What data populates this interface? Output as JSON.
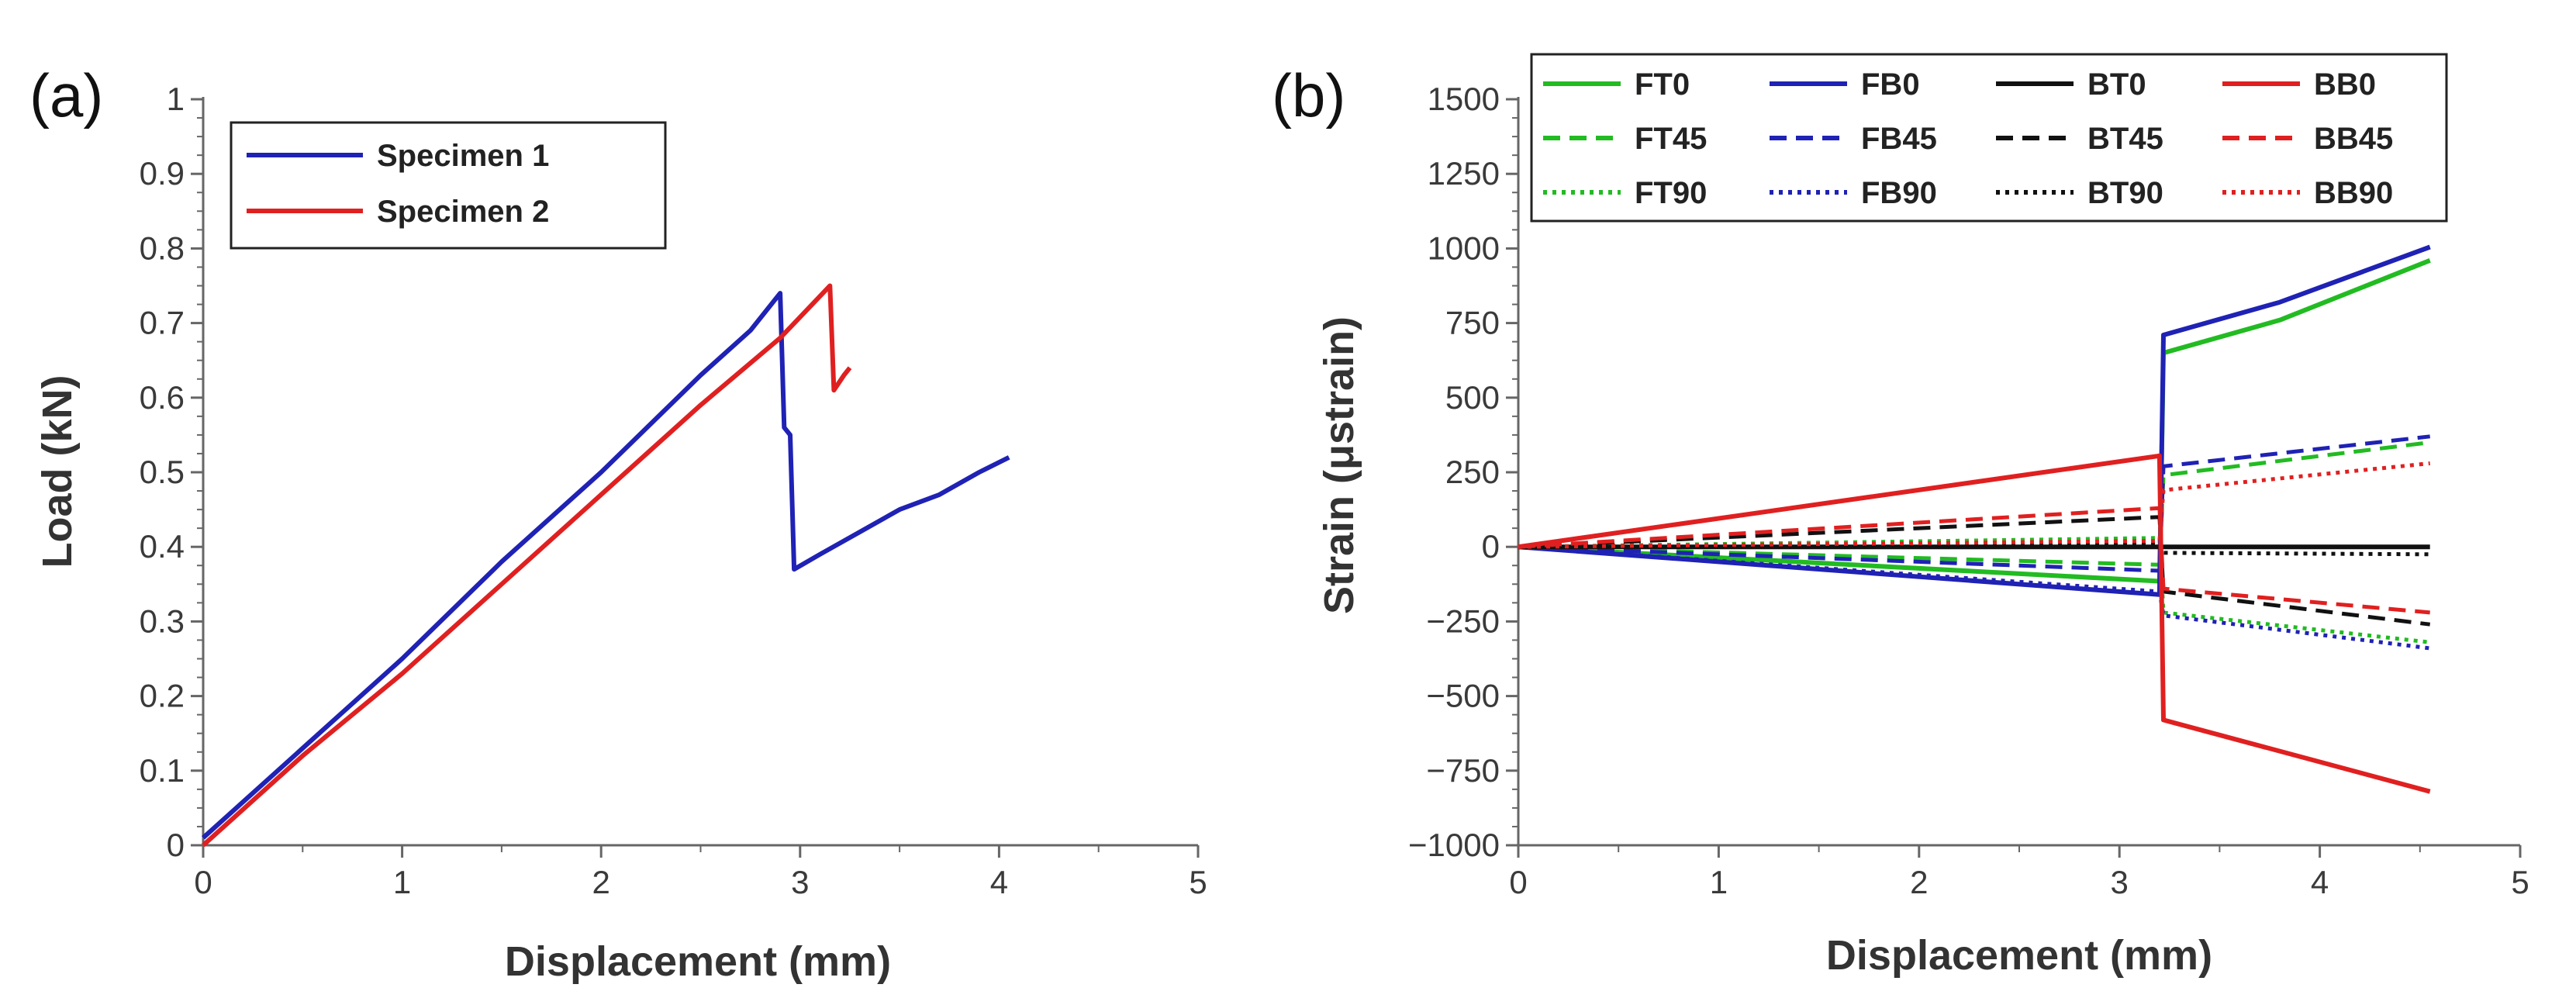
{
  "chart_data": [
    {
      "type": "line",
      "panel_label": "(a)",
      "xlabel": "Displacement (mm)",
      "ylabel": "Load (kN)",
      "xlim": [
        0,
        5
      ],
      "ylim": [
        0,
        1
      ],
      "x_ticks": [
        "0",
        "1",
        "2",
        "3",
        "4",
        "5"
      ],
      "y_ticks": [
        "0",
        "0.1",
        "0.2",
        "0.3",
        "0.4",
        "0.5",
        "0.6",
        "0.7",
        "0.8",
        "0.9",
        "1"
      ],
      "grid": false,
      "legend_position": "top-left",
      "series": [
        {
          "name": "Specimen 1",
          "color": "#1f22b4",
          "style": "solid",
          "points": [
            [
              0,
              0.01
            ],
            [
              0.5,
              0.13
            ],
            [
              1,
              0.25
            ],
            [
              1.5,
              0.38
            ],
            [
              2,
              0.5
            ],
            [
              2.5,
              0.63
            ],
            [
              2.75,
              0.69
            ],
            [
              2.9,
              0.74
            ],
            [
              2.92,
              0.56
            ],
            [
              2.95,
              0.55
            ],
            [
              2.97,
              0.37
            ],
            [
              3.1,
              0.39
            ],
            [
              3.3,
              0.42
            ],
            [
              3.5,
              0.45
            ],
            [
              3.7,
              0.47
            ],
            [
              3.9,
              0.5
            ],
            [
              4.05,
              0.52
            ]
          ]
        },
        {
          "name": "Specimen 2",
          "color": "#e02020",
          "style": "solid",
          "points": [
            [
              0,
              0.0
            ],
            [
              0.5,
              0.12
            ],
            [
              1,
              0.23
            ],
            [
              1.5,
              0.35
            ],
            [
              2,
              0.47
            ],
            [
              2.5,
              0.59
            ],
            [
              2.9,
              0.68
            ],
            [
              3.15,
              0.75
            ],
            [
              3.17,
              0.61
            ],
            [
              3.22,
              0.63
            ],
            [
              3.25,
              0.64
            ]
          ]
        }
      ]
    },
    {
      "type": "line",
      "panel_label": "(b)",
      "xlabel": "Displacement (mm)",
      "ylabel": "Strain (μstrain)",
      "xlim": [
        0,
        5
      ],
      "ylim": [
        -1000,
        1500
      ],
      "x_ticks": [
        "0",
        "1",
        "2",
        "3",
        "4",
        "5"
      ],
      "y_ticks": [
        "−1000",
        "−750",
        "−500",
        "−250",
        "0",
        "250",
        "500",
        "750",
        "1000",
        "1250",
        "1500"
      ],
      "grid": false,
      "legend_position": "top",
      "series": [
        {
          "name": "FT0",
          "color": "#22bb22",
          "style": "solid",
          "points": [
            [
              0,
              0
            ],
            [
              3.2,
              -115
            ],
            [
              3.22,
              650
            ],
            [
              3.8,
              760
            ],
            [
              4.55,
              960
            ]
          ]
        },
        {
          "name": "FT45",
          "color": "#22bb22",
          "style": "dashed",
          "points": [
            [
              0,
              0
            ],
            [
              3.2,
              -60
            ],
            [
              3.22,
              240
            ],
            [
              4.55,
              350
            ]
          ]
        },
        {
          "name": "FT90",
          "color": "#22bb22",
          "style": "dotted",
          "points": [
            [
              0,
              0
            ],
            [
              3.2,
              30
            ],
            [
              3.22,
              -220
            ],
            [
              4.55,
              -320
            ]
          ]
        },
        {
          "name": "FB0",
          "color": "#1f22b4",
          "style": "solid",
          "points": [
            [
              0,
              0
            ],
            [
              3.2,
              -160
            ],
            [
              3.22,
              710
            ],
            [
              3.8,
              820
            ],
            [
              4.55,
              1005
            ]
          ]
        },
        {
          "name": "FB45",
          "color": "#1f22b4",
          "style": "dashed",
          "points": [
            [
              0,
              0
            ],
            [
              3.2,
              -80
            ],
            [
              3.22,
              270
            ],
            [
              4.55,
              370
            ]
          ]
        },
        {
          "name": "FB90",
          "color": "#1f22b4",
          "style": "dotted",
          "points": [
            [
              0,
              0
            ],
            [
              3.2,
              -150
            ],
            [
              3.22,
              -230
            ],
            [
              4.55,
              -340
            ]
          ]
        },
        {
          "name": "BT0",
          "color": "#111111",
          "style": "solid",
          "points": [
            [
              0,
              0
            ],
            [
              4.55,
              0
            ]
          ]
        },
        {
          "name": "BT45",
          "color": "#111111",
          "style": "dashed",
          "points": [
            [
              0,
              0
            ],
            [
              3.2,
              100
            ],
            [
              3.22,
              -150
            ],
            [
              4.55,
              -260
            ]
          ]
        },
        {
          "name": "BT90",
          "color": "#111111",
          "style": "dotted",
          "points": [
            [
              0,
              0
            ],
            [
              3.2,
              10
            ],
            [
              3.22,
              -20
            ],
            [
              4.55,
              -25
            ]
          ]
        },
        {
          "name": "BB0",
          "color": "#e02020",
          "style": "solid",
          "points": [
            [
              0,
              0
            ],
            [
              3.2,
              305
            ],
            [
              3.22,
              -580
            ],
            [
              4.55,
              -820
            ]
          ]
        },
        {
          "name": "BB45",
          "color": "#e02020",
          "style": "dashed",
          "points": [
            [
              0,
              0
            ],
            [
              3.2,
              130
            ],
            [
              3.22,
              -140
            ],
            [
              4.55,
              -220
            ]
          ]
        },
        {
          "name": "BB90",
          "color": "#e02020",
          "style": "dotted",
          "points": [
            [
              0,
              0
            ],
            [
              3.2,
              20
            ],
            [
              3.22,
              190
            ],
            [
              4.55,
              280
            ]
          ]
        }
      ]
    }
  ]
}
